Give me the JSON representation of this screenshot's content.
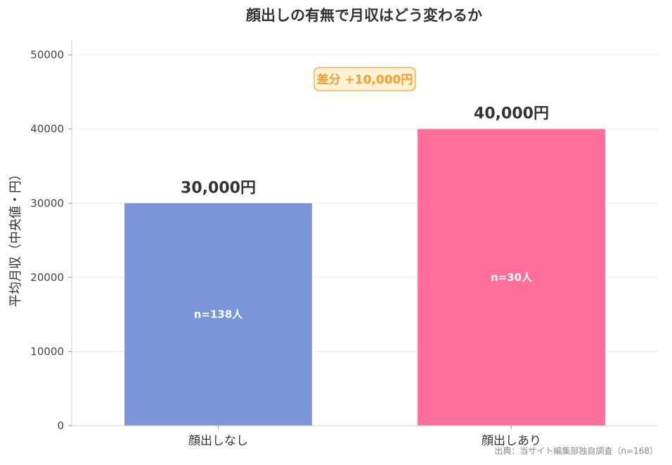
{
  "chart_data": {
    "type": "bar",
    "title": "顔出しの有無で月収はどう変わるか",
    "xlabel": "",
    "ylabel": "平均月収（中央値・円）",
    "categories": [
      "顔出しなし",
      "顔出しあり"
    ],
    "values": [
      30000,
      40000
    ],
    "value_labels": [
      "30,000円",
      "40,000円"
    ],
    "n_labels": [
      "n=138人",
      "n=30人"
    ],
    "colors": [
      "#7b96d8",
      "#ff6f9a"
    ],
    "ylim": [
      0,
      52000
    ],
    "yticks": [
      0,
      10000,
      20000,
      30000,
      40000,
      50000
    ],
    "grid": true,
    "annotation": "差分 +10,000円",
    "source": "出典：当サイト編集部独自調査（n=168）"
  }
}
